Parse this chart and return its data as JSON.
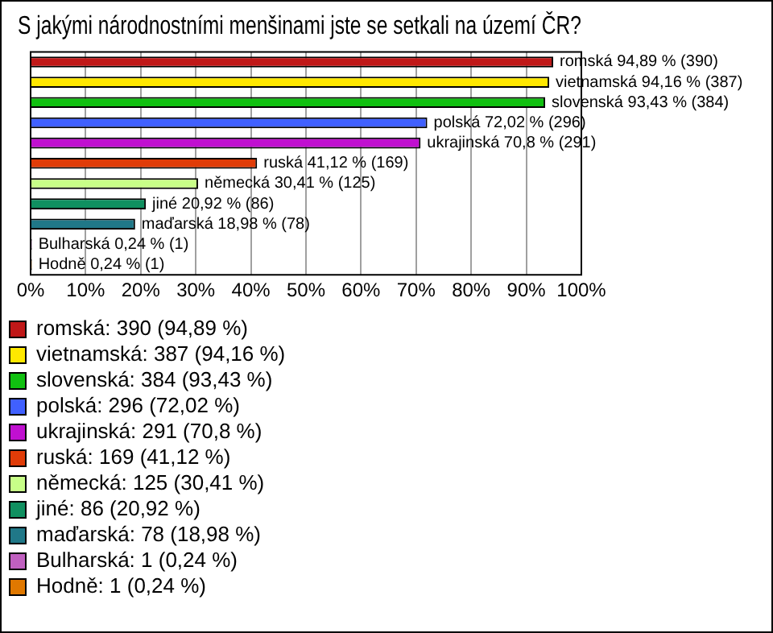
{
  "chart_data": {
    "type": "bar",
    "orientation": "horizontal",
    "title": "S jakými národnostními menšinami jste se setkali na území ČR?",
    "categories": [
      null,
      null,
      null,
      null,
      null,
      null,
      null,
      null,
      null,
      null,
      null
    ],
    "series": [
      {
        "name": "romská: 390 (94,89 %)",
        "color": "#c01818",
        "values": [
          94.89,
          null,
          null,
          null,
          null,
          null,
          null,
          null,
          null,
          null,
          null
        ],
        "value_labels": [
          "romská 94,89 % (390)",
          null,
          null,
          null,
          null,
          null,
          null,
          null,
          null,
          null,
          null
        ]
      },
      {
        "name": "vietnamská: 387 (94,16 %)",
        "color": "#ffe800",
        "values": [
          null,
          94.16,
          null,
          null,
          null,
          null,
          null,
          null,
          null,
          null,
          null
        ],
        "value_labels": [
          null,
          "vietnamská 94,16 % (387)",
          null,
          null,
          null,
          null,
          null,
          null,
          null,
          null,
          null
        ]
      },
      {
        "name": "slovenská: 384 (93,43 %)",
        "color": "#10c010",
        "values": [
          null,
          null,
          93.43,
          null,
          null,
          null,
          null,
          null,
          null,
          null,
          null
        ],
        "value_labels": [
          null,
          null,
          "slovenská 93,43 % (384)",
          null,
          null,
          null,
          null,
          null,
          null,
          null,
          null
        ]
      },
      {
        "name": "polská: 296 (72,02 %)",
        "color": "#4060ff",
        "values": [
          null,
          null,
          null,
          72.02,
          null,
          null,
          null,
          null,
          null,
          null,
          null
        ],
        "value_labels": [
          null,
          null,
          null,
          "polská 72,02 % (296)",
          null,
          null,
          null,
          null,
          null,
          null,
          null
        ]
      },
      {
        "name": "ukrajinská: 291 (70,8 %)",
        "color": "#c010d0",
        "values": [
          null,
          null,
          null,
          null,
          70.8,
          null,
          null,
          null,
          null,
          null,
          null
        ],
        "value_labels": [
          null,
          null,
          null,
          null,
          "ukrajinská 70,8 % (291)",
          null,
          null,
          null,
          null,
          null,
          null
        ]
      },
      {
        "name": "ruská: 169 (41,12 %)",
        "color": "#e03c08",
        "values": [
          null,
          null,
          null,
          null,
          null,
          41.12,
          null,
          null,
          null,
          null,
          null
        ],
        "value_labels": [
          null,
          null,
          null,
          null,
          null,
          "ruská 41,12 % (169)",
          null,
          null,
          null,
          null,
          null
        ]
      },
      {
        "name": "německá: 125 (30,41 %)",
        "color": "#c8ff88",
        "values": [
          null,
          null,
          null,
          null,
          null,
          null,
          30.41,
          null,
          null,
          null,
          null
        ],
        "value_labels": [
          null,
          null,
          null,
          null,
          null,
          null,
          "německá 30,41 % (125)",
          null,
          null,
          null,
          null
        ]
      },
      {
        "name": "jiné: 86 (20,92 %)",
        "color": "#109060",
        "values": [
          null,
          null,
          null,
          null,
          null,
          null,
          null,
          20.92,
          null,
          null,
          null
        ],
        "value_labels": [
          null,
          null,
          null,
          null,
          null,
          null,
          null,
          "jiné 20,92 % (86)",
          null,
          null,
          null
        ]
      },
      {
        "name": "maďarská: 78 (18,98 %)",
        "color": "#207888",
        "values": [
          null,
          null,
          null,
          null,
          null,
          null,
          null,
          null,
          18.98,
          null,
          null
        ],
        "value_labels": [
          null,
          null,
          null,
          null,
          null,
          null,
          null,
          null,
          "maďarská 18,98 % (78)",
          null,
          null
        ]
      },
      {
        "name": "Bulharská: 1 (0,24 %)",
        "color": "#c060c0",
        "values": [
          null,
          null,
          null,
          null,
          null,
          null,
          null,
          null,
          null,
          0.24,
          null
        ],
        "value_labels": [
          null,
          null,
          null,
          null,
          null,
          null,
          null,
          null,
          null,
          "Bulharská 0,24 % (1)",
          null
        ]
      },
      {
        "name": "Hodně: 1 (0,24 %)",
        "color": "#e07800",
        "values": [
          null,
          null,
          null,
          null,
          null,
          null,
          null,
          null,
          null,
          null,
          0.24
        ],
        "value_labels": [
          null,
          null,
          null,
          null,
          null,
          null,
          null,
          null,
          null,
          null,
          "Hodně 0,24 % (1)"
        ]
      }
    ],
    "xlim": [
      0,
      100
    ],
    "xticks": [
      {
        "value": 0,
        "label": "0%"
      },
      {
        "value": 10,
        "label": "10%"
      },
      {
        "value": 20,
        "label": "20%"
      },
      {
        "value": 30,
        "label": "30%"
      },
      {
        "value": 40,
        "label": "40%"
      },
      {
        "value": 50,
        "label": "50%"
      },
      {
        "value": 60,
        "label": "60%"
      },
      {
        "value": 70,
        "label": "70%"
      },
      {
        "value": 80,
        "label": "80%"
      },
      {
        "value": 90,
        "label": "90%"
      },
      {
        "value": 100,
        "label": "100%"
      }
    ],
    "grid": "x",
    "legend": "bottom",
    "tick_labels": "x"
  }
}
